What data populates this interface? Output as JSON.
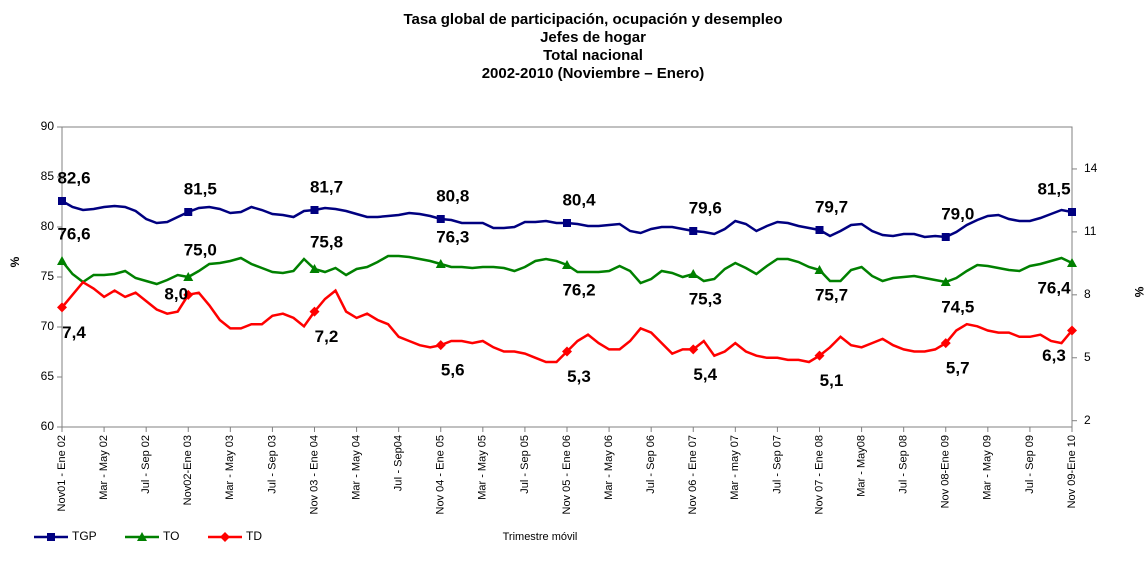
{
  "chart_data": {
    "type": "line",
    "title": [
      "Tasa global de participación, ocupación y desempleo",
      "Jefes de hogar",
      "Total nacional",
      "2002-2010 (Noviembre – Enero)"
    ],
    "xlabel": "Trimestre móvil",
    "ylabel": "%",
    "y2label": "%",
    "categories": [
      "Nov01 - Ene 02",
      null,
      null,
      null,
      "Mar - May 02",
      null,
      null,
      null,
      "Jul - Sep 02",
      null,
      null,
      null,
      "Nov02-Ene 03",
      null,
      null,
      null,
      "Mar - May 03",
      null,
      null,
      null,
      "Jul - Sep 03",
      null,
      null,
      null,
      "Nov 03 - Ene 04",
      null,
      null,
      null,
      "Mar - May 04",
      null,
      null,
      null,
      "JuI - Sep04",
      null,
      null,
      null,
      "Nov 04 - Ene 05",
      null,
      null,
      null,
      "Mar - May 05",
      null,
      null,
      null,
      "Jul - Sep 05",
      null,
      null,
      null,
      "Nov 05 - Ene 06",
      null,
      null,
      null,
      "Mar - May 06",
      null,
      null,
      null,
      "Jul - Sep 06",
      null,
      null,
      null,
      "Nov 06 - Ene 07",
      null,
      null,
      null,
      "Mar - may 07",
      null,
      null,
      null,
      "Jul - Sep 07",
      null,
      null,
      null,
      "Nov 07 - Ene 08",
      null,
      null,
      null,
      "Mar - May08",
      null,
      null,
      null,
      "Jul - Sep 08",
      null,
      null,
      null,
      "Nov 08-Ene 09",
      null,
      null,
      null,
      "Mar - May 09",
      null,
      null,
      null,
      "Jul - Sep 09",
      null,
      null,
      null,
      "Nov 09-Ene 10"
    ],
    "ylim": [
      60,
      90
    ],
    "yticks": [
      60,
      65,
      70,
      75,
      80,
      85,
      90
    ],
    "y2lim": [
      1.7,
      16
    ],
    "y2ticks": [
      2,
      5,
      8,
      11,
      14
    ],
    "legend": "bottom-left",
    "series": [
      {
        "name": "TGP",
        "color": "#000080",
        "marker": "square",
        "values": [
          82.6,
          82.0,
          81.7,
          81.8,
          82.0,
          82.1,
          82.0,
          81.6,
          80.8,
          80.4,
          80.5,
          81.0,
          81.5,
          81.9,
          82.0,
          81.8,
          81.4,
          81.5,
          82.0,
          81.7,
          81.3,
          81.2,
          81.0,
          81.6,
          81.7,
          81.9,
          81.8,
          81.6,
          81.3,
          81.0,
          81.0,
          81.1,
          81.2,
          81.4,
          81.3,
          81.1,
          80.8,
          80.7,
          80.4,
          80.4,
          80.4,
          79.9,
          79.9,
          80.0,
          80.5,
          80.5,
          80.6,
          80.4,
          80.4,
          80.3,
          80.1,
          80.1,
          80.2,
          80.3,
          79.6,
          79.4,
          79.8,
          80.0,
          80.0,
          79.8,
          79.6,
          79.5,
          79.3,
          79.8,
          80.6,
          80.3,
          79.6,
          80.1,
          80.5,
          80.4,
          80.1,
          79.9,
          79.7,
          79.1,
          79.6,
          80.2,
          80.3,
          79.6,
          79.2,
          79.1,
          79.3,
          79.3,
          79.0,
          79.1,
          79.0,
          79.5,
          80.2,
          80.7,
          81.1,
          81.2,
          80.8,
          80.6,
          80.6,
          80.9,
          81.3,
          81.7,
          81.5
        ],
        "value_labels": [
          "82,6",
          null,
          null,
          null,
          null,
          null,
          null,
          null,
          null,
          null,
          null,
          null,
          "81,5",
          null,
          null,
          null,
          null,
          null,
          null,
          null,
          null,
          null,
          null,
          null,
          "81,7",
          null,
          null,
          null,
          null,
          null,
          null,
          null,
          null,
          null,
          null,
          null,
          "80,8",
          null,
          null,
          null,
          null,
          null,
          null,
          null,
          null,
          null,
          null,
          null,
          "80,4",
          null,
          null,
          null,
          null,
          null,
          null,
          null,
          null,
          null,
          null,
          null,
          "79,6",
          null,
          null,
          null,
          null,
          null,
          null,
          null,
          null,
          null,
          null,
          null,
          "79,7",
          null,
          null,
          null,
          null,
          null,
          null,
          null,
          null,
          null,
          null,
          null,
          "79,0",
          null,
          null,
          null,
          null,
          null,
          null,
          null,
          null,
          null,
          null,
          null,
          "81,5"
        ]
      },
      {
        "name": "TO",
        "color": "#008000",
        "marker": "triangle",
        "values": [
          76.6,
          75.3,
          74.5,
          75.2,
          75.2,
          75.3,
          75.6,
          74.9,
          74.6,
          74.3,
          74.7,
          75.2,
          75.0,
          75.6,
          76.3,
          76.4,
          76.6,
          76.9,
          76.3,
          75.9,
          75.5,
          75.4,
          75.6,
          76.8,
          75.8,
          75.5,
          75.9,
          75.2,
          75.8,
          76.0,
          76.5,
          77.1,
          77.1,
          77.0,
          76.8,
          76.6,
          76.3,
          76.0,
          76.0,
          75.9,
          76.0,
          76.0,
          75.9,
          75.6,
          76.0,
          76.6,
          76.8,
          76.6,
          76.2,
          75.5,
          75.5,
          75.5,
          75.6,
          76.1,
          75.6,
          74.4,
          74.8,
          75.6,
          75.4,
          75.0,
          75.3,
          74.6,
          74.8,
          75.8,
          76.4,
          75.9,
          75.3,
          76.1,
          76.8,
          76.8,
          76.5,
          76.0,
          75.7,
          74.6,
          74.6,
          75.7,
          76.0,
          75.1,
          74.6,
          74.9,
          75.0,
          75.1,
          74.9,
          74.7,
          74.5,
          74.9,
          75.6,
          76.2,
          76.1,
          75.9,
          75.7,
          75.6,
          76.1,
          76.3,
          76.6,
          76.9,
          76.4
        ],
        "value_labels": [
          "76,6",
          null,
          null,
          null,
          null,
          null,
          null,
          null,
          null,
          null,
          null,
          null,
          "75,0",
          null,
          null,
          null,
          null,
          null,
          null,
          null,
          null,
          null,
          null,
          null,
          "75,8",
          null,
          null,
          null,
          null,
          null,
          null,
          null,
          null,
          null,
          null,
          null,
          "76,3",
          null,
          null,
          null,
          null,
          null,
          null,
          null,
          null,
          null,
          null,
          null,
          "76,2",
          null,
          null,
          null,
          null,
          null,
          null,
          null,
          null,
          null,
          null,
          null,
          "75,3",
          null,
          null,
          null,
          null,
          null,
          null,
          null,
          null,
          null,
          null,
          null,
          "75,7",
          null,
          null,
          null,
          null,
          null,
          null,
          null,
          null,
          null,
          null,
          null,
          "74,5",
          null,
          null,
          null,
          null,
          null,
          null,
          null,
          null,
          null,
          null,
          null,
          "76,4"
        ]
      },
      {
        "name": "TD",
        "color": "#ff0000",
        "marker": "diamond",
        "axis": "y2",
        "values": [
          7.4,
          8.0,
          8.6,
          8.3,
          7.9,
          8.2,
          7.9,
          8.1,
          7.7,
          7.3,
          7.1,
          7.2,
          8.0,
          8.1,
          7.5,
          6.8,
          6.4,
          6.4,
          6.6,
          6.6,
          7.0,
          7.1,
          6.9,
          6.5,
          7.2,
          7.8,
          8.2,
          7.2,
          6.9,
          7.1,
          6.8,
          6.6,
          6.0,
          5.8,
          5.6,
          5.5,
          5.6,
          5.8,
          5.8,
          5.7,
          5.8,
          5.5,
          5.3,
          5.3,
          5.2,
          5.0,
          4.8,
          4.8,
          5.3,
          5.8,
          6.1,
          5.7,
          5.4,
          5.4,
          5.8,
          6.4,
          6.2,
          5.7,
          5.2,
          5.4,
          5.4,
          5.8,
          5.1,
          5.3,
          5.7,
          5.3,
          5.1,
          5.0,
          5.0,
          4.9,
          4.9,
          4.8,
          5.1,
          5.5,
          6.0,
          5.6,
          5.5,
          5.7,
          5.9,
          5.6,
          5.4,
          5.3,
          5.3,
          5.4,
          5.7,
          6.3,
          6.6,
          6.5,
          6.3,
          6.2,
          6.2,
          6.0,
          6.0,
          6.1,
          5.8,
          5.7,
          6.3
        ],
        "value_labels": [
          "7,4",
          null,
          null,
          null,
          null,
          null,
          null,
          null,
          null,
          null,
          null,
          null,
          "8,0",
          null,
          null,
          null,
          null,
          null,
          null,
          null,
          null,
          null,
          null,
          null,
          "7,2",
          null,
          null,
          null,
          null,
          null,
          null,
          null,
          null,
          null,
          null,
          null,
          "5,6",
          null,
          null,
          null,
          null,
          null,
          null,
          null,
          null,
          null,
          null,
          null,
          "5,3",
          null,
          null,
          null,
          null,
          null,
          null,
          null,
          null,
          null,
          null,
          null,
          "5,4",
          null,
          null,
          null,
          null,
          null,
          null,
          null,
          null,
          null,
          null,
          null,
          "5,1",
          null,
          null,
          null,
          null,
          null,
          null,
          null,
          null,
          null,
          null,
          null,
          "5,7",
          null,
          null,
          null,
          null,
          null,
          null,
          null,
          null,
          null,
          null,
          null,
          "6,3"
        ]
      }
    ]
  }
}
